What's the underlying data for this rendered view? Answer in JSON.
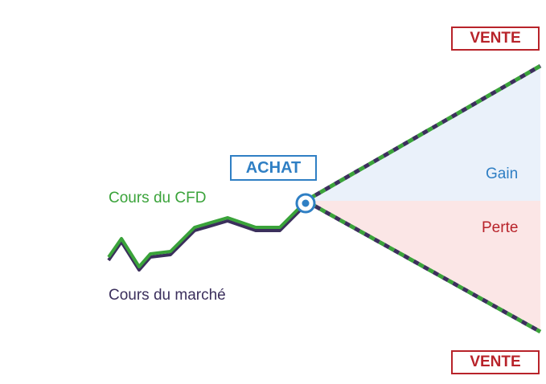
{
  "labels": {
    "sell_top": "VENTE",
    "sell_bottom": "VENTE",
    "buy": "ACHAT",
    "cfd_price": "Cours du CFD",
    "market_price": "Cours du marché",
    "gain": "Gain",
    "loss": "Perte"
  },
  "colors": {
    "cfd_line": "#3aa33a",
    "market_line": "#3b2f5c",
    "buy": "#2f7fc4",
    "sell": "#b8232a",
    "gain_zone": "#eaf1fa",
    "loss_zone": "#fbe6e6",
    "gain_text": "#2f7fc4",
    "loss_text": "#b8232a"
  }
}
